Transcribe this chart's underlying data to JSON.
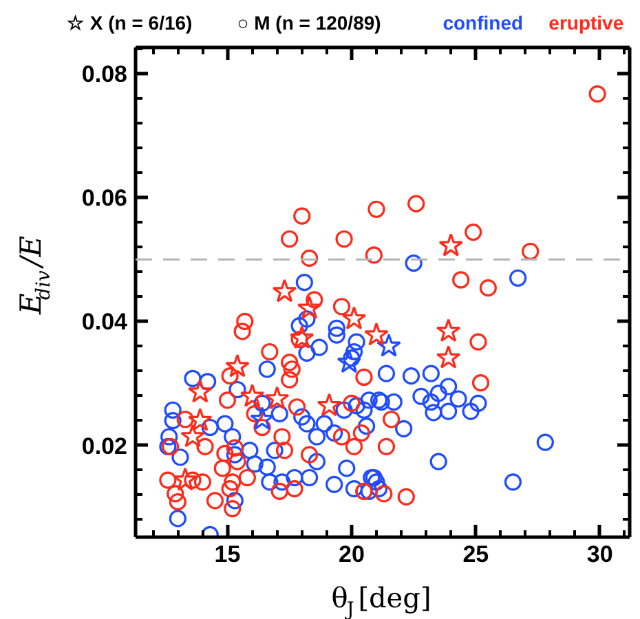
{
  "chart_data": {
    "type": "scatter",
    "xlabel": "θ$_{J}$[deg]",
    "ylabel": "E$_{div}$/E",
    "annotations": [
      "☆ X (n = 6/16)",
      "○ M (n = 120/89)"
    ],
    "grid": false,
    "xlim": [
      11.3,
      31.2
    ],
    "xticks": [
      15,
      20,
      25,
      30
    ],
    "ylim": [
      0.0052,
      0.0842
    ],
    "yticks": [
      0.02,
      0.04,
      0.06,
      0.08
    ],
    "ref_lines": [
      {
        "axis": "y",
        "value": 0.05,
        "color": "#b4b4b4",
        "line_style": "dashed"
      }
    ],
    "series": [
      {
        "name": "confined",
        "color": "#1f4cff",
        "marker": "circle",
        "x": [
          18.1,
          17.9,
          18.2,
          18.2,
          18.7,
          19.4,
          19.4,
          20.2,
          20.1,
          20.0,
          16.6,
          13.6,
          14.2,
          22.5,
          26.7,
          12.8,
          12.8,
          12.65,
          12.6,
          13.1,
          14.3,
          14.9,
          15.2,
          15.4,
          16.4,
          17.1,
          18.0,
          18.2,
          18.6,
          18.9,
          19.3,
          19.7,
          20.2,
          20.5,
          21.1,
          15.3,
          15.9,
          16.1,
          16.7,
          17.2,
          17.7,
          18.3,
          18.6,
          19.3,
          19.8,
          20.1,
          20.5,
          20.9,
          14.3,
          13.0,
          15.3,
          16.9,
          16.6,
          21.4,
          22.4,
          23.2,
          20.7,
          21.2,
          21.7,
          22.8,
          23.2,
          23.5,
          23.9,
          24.3,
          25.1,
          24.8,
          23.3,
          23.9,
          20.6,
          22.1,
          27.8,
          23.5,
          26.5,
          20.8,
          21.0,
          20.7,
          21.1
        ],
        "values": [
          0.0463,
          0.0393,
          0.0404,
          0.0349,
          0.0358,
          0.0389,
          0.0378,
          0.0367,
          0.0351,
          0.0341,
          0.0323,
          0.0308,
          0.0303,
          0.0494,
          0.047,
          0.0257,
          0.024,
          0.0214,
          0.0198,
          0.0181,
          0.0229,
          0.0235,
          0.0214,
          0.029,
          0.0268,
          0.0251,
          0.0246,
          0.0235,
          0.0214,
          0.0235,
          0.022,
          0.0257,
          0.0264,
          0.0257,
          0.0273,
          0.0185,
          0.0192,
          0.017,
          0.0141,
          0.0141,
          0.0148,
          0.0148,
          0.0174,
          0.0137,
          0.0163,
          0.013,
          0.0126,
          0.0148,
          0.0056,
          0.0082,
          0.0111,
          0.0192,
          0.0165,
          0.0316,
          0.0312,
          0.0316,
          0.0273,
          0.027,
          0.027,
          0.0279,
          0.027,
          0.0284,
          0.0295,
          0.0275,
          0.0268,
          0.0255,
          0.0253,
          0.0255,
          0.0231,
          0.0227,
          0.0205,
          0.0174,
          0.0141,
          0.0148,
          0.0141,
          0.0126,
          0.013
        ]
      },
      {
        "name": "eruptive",
        "color": "#ff2a1a",
        "marker": "circle",
        "x": [
          29.9,
          22.6,
          21.0,
          18.0,
          17.5,
          19.7,
          20.9,
          18.3,
          18.5,
          19.6,
          15.7,
          15.6,
          16.7,
          17.5,
          17.6,
          17.9,
          20.5,
          24.9,
          27.2,
          24.4,
          25.5,
          25.1,
          25.2,
          15.1,
          17.5,
          15.0,
          13.3,
          14.1,
          12.7,
          14.9,
          15.3,
          15.4,
          14.8,
          12.6,
          13.6,
          14.0,
          12.9,
          13.0,
          14.5,
          15.1,
          15.2,
          15.2,
          16.1,
          16.4,
          17.2,
          17.3,
          17.8,
          18.3,
          20.0,
          20.4,
          20.1,
          19.6,
          17.1,
          17.7,
          15.8,
          21.6,
          21.4,
          21.3,
          22.2,
          20.5
        ],
        "values": [
          0.0767,
          0.059,
          0.0581,
          0.057,
          0.0533,
          0.0533,
          0.0507,
          0.0502,
          0.0435,
          0.0424,
          0.04,
          0.0384,
          0.0351,
          0.0334,
          0.0323,
          0.0371,
          0.031,
          0.0544,
          0.0513,
          0.0467,
          0.0454,
          0.0367,
          0.0301,
          0.0312,
          0.0306,
          0.0273,
          0.0242,
          0.0198,
          0.0198,
          0.0187,
          0.0196,
          0.0174,
          0.0163,
          0.0144,
          0.0144,
          0.0141,
          0.0122,
          0.0109,
          0.0111,
          0.013,
          0.0141,
          0.0098,
          0.0251,
          0.0229,
          0.0214,
          0.0192,
          0.0262,
          0.0185,
          0.0268,
          0.022,
          0.0198,
          0.0214,
          0.0126,
          0.013,
          0.0148,
          0.0242,
          0.0198,
          0.0122,
          0.0117,
          0.0126
        ]
      },
      {
        "color": "#1f4cff",
        "marker": "star",
        "x": [
          21.5,
          19.9,
          16.4
        ],
        "values": [
          0.036,
          0.0334,
          0.0242
        ]
      },
      {
        "color": "#ff2a1a",
        "marker": "star",
        "x": [
          17.3,
          18.3,
          20.1,
          21.0,
          15.4,
          18.0,
          24.0,
          23.9,
          23.9,
          13.9,
          16.0,
          17.0,
          13.9,
          13.6,
          13.3,
          19.1
        ],
        "values": [
          0.0448,
          0.0421,
          0.0404,
          0.0378,
          0.0327,
          0.0373,
          0.0522,
          0.0384,
          0.0341,
          0.0286,
          0.0279,
          0.0275,
          0.024,
          0.0214,
          0.0144,
          0.0264
        ]
      }
    ]
  }
}
